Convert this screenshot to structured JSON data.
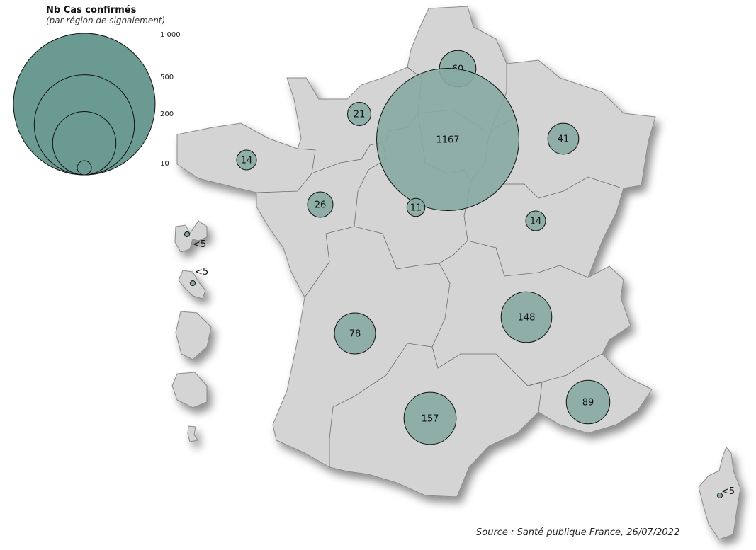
{
  "legend": {
    "title": "Nb Cas confirmés",
    "subtitle": "(par région de signalement)",
    "scale_values": [
      1000,
      500,
      200,
      10
    ],
    "scale_labels": [
      "1 000",
      "500",
      "200",
      "10"
    ],
    "bubble_color": "#6a9a92"
  },
  "bubbles": {
    "color": "#86aaa2",
    "items": [
      {
        "label": "60",
        "value": 60
      },
      {
        "label": "1167",
        "value": 1167
      },
      {
        "label": "21",
        "value": 21
      },
      {
        "label": "41",
        "value": 41
      },
      {
        "label": "14",
        "value": 14
      },
      {
        "label": "26",
        "value": 26
      },
      {
        "label": "11",
        "value": 11
      },
      {
        "label": "14",
        "value": 14
      },
      {
        "label": "148",
        "value": 148
      },
      {
        "label": "78",
        "value": 78
      },
      {
        "label": "157",
        "value": 157
      },
      {
        "label": "89",
        "value": 89
      },
      {
        "label": "<5",
        "value": "<5"
      },
      {
        "label": "<5",
        "value": "<5"
      },
      {
        "label": "<5",
        "value": "<5"
      }
    ]
  },
  "land_color": "#d4d4d4",
  "source": "Source : Santé publique France, 26/07/2022"
}
